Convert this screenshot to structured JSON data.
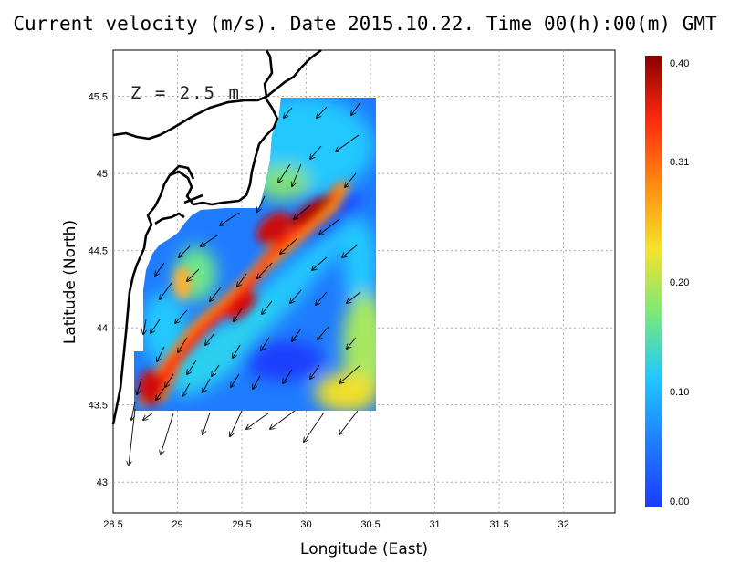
{
  "title": "Current velocity (m/s). Date 2015.10.22. Time 00(h):00(m) GMT",
  "depth_label": "Z = 2.5 m",
  "xlabel": "Longitude (East)",
  "ylabel": "Latitude (North)",
  "colorbar": {
    "ticks": [
      "0.00",
      "0.10",
      "0.20",
      "0.31",
      "0.40"
    ],
    "tick_values": [
      0.0,
      0.1,
      0.2,
      0.31,
      0.4
    ],
    "range": [
      0.0,
      0.4
    ],
    "colors": [
      "#1a3cff",
      "#1f7cff",
      "#1fc8ff",
      "#7ae87a",
      "#f5e32a",
      "#ff8c10",
      "#ff2a10",
      "#8b0000"
    ]
  },
  "chart_data": {
    "type": "heatmap",
    "title": "Current velocity (m/s). Date 2015.10.22. Time 00(h):00(m) GMT",
    "xlabel": "Longitude (East)",
    "ylabel": "Latitude (North)",
    "xlim": [
      28.5,
      32.4
    ],
    "ylim": [
      42.8,
      45.8
    ],
    "x_ticks": [
      "28.5",
      "29",
      "29.5",
      "30",
      "30.5",
      "31",
      "31.5",
      "32"
    ],
    "x_tick_values": [
      28.5,
      29,
      29.5,
      30,
      30.5,
      31,
      31.5,
      32
    ],
    "y_ticks": [
      "43",
      "43.5",
      "44",
      "44.5",
      "45",
      "45.5"
    ],
    "y_tick_values": [
      43,
      43.5,
      44,
      44.5,
      45,
      45.5
    ],
    "grid": true,
    "depth": "Z = 2.5 m",
    "domain_extent": {
      "lon": [
        28.65,
        30.55
      ],
      "lat": [
        43.48,
        45.5
      ]
    },
    "jet_axis": [
      [
        28.75,
        43.6
      ],
      [
        29.1,
        44.0
      ],
      [
        29.5,
        44.35
      ],
      [
        29.8,
        44.6
      ],
      [
        30.25,
        44.95
      ]
    ],
    "jet_peak_speed": 0.4,
    "background_speed_range": [
      0.0,
      0.2
    ],
    "vector_direction": "southwest"
  }
}
